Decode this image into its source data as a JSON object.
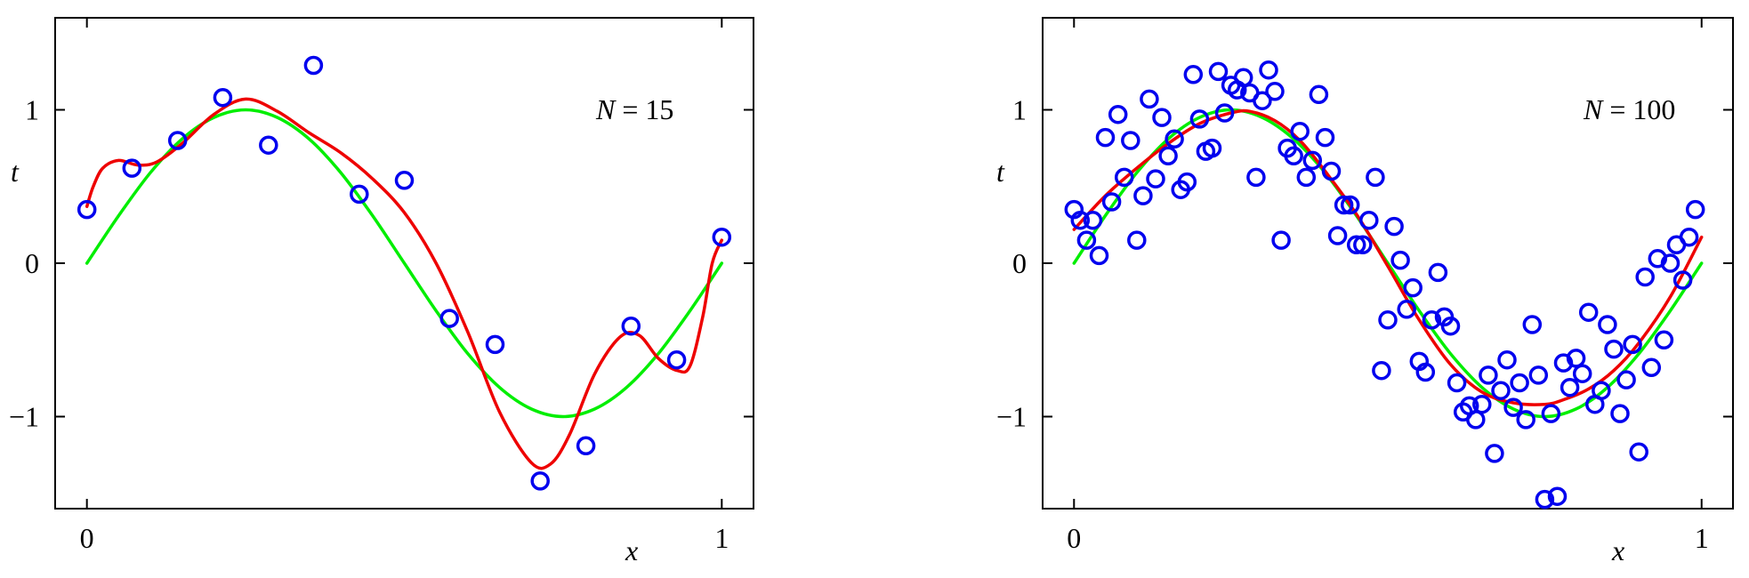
{
  "chart_data": [
    {
      "type": "scatter",
      "annotation": {
        "var": "N",
        "text": " = 15"
      },
      "xlabel": "x",
      "ylabel": "t",
      "xlim": [
        -0.05,
        1.05
      ],
      "ylim": [
        -1.6,
        1.6
      ],
      "xticks": [
        0,
        1
      ],
      "xtick_labels": [
        "0",
        "1"
      ],
      "yticks": [
        -1,
        0,
        1
      ],
      "ytick_labels": [
        "−1",
        "0",
        "1"
      ],
      "grid": false,
      "colors": {
        "points": "#0000ee",
        "true_curve": "#00ee00",
        "fit_curve": "#ee0000"
      },
      "series": [
        {
          "kind": "points",
          "x": [
            0.0,
            0.071,
            0.143,
            0.214,
            0.286,
            0.357,
            0.429,
            0.5,
            0.571,
            0.643,
            0.714,
            0.786,
            0.857,
            0.929,
            1.0
          ],
          "y": [
            0.35,
            0.62,
            0.8,
            1.08,
            0.77,
            1.29,
            0.45,
            0.54,
            -0.36,
            -0.53,
            -1.42,
            -1.19,
            -0.41,
            -0.63,
            0.17
          ]
        },
        {
          "kind": "true-curve",
          "x": [
            0.0,
            0.05,
            0.1,
            0.15,
            0.2,
            0.25,
            0.3,
            0.35,
            0.4,
            0.45,
            0.5,
            0.55,
            0.6,
            0.65,
            0.7,
            0.75,
            0.8,
            0.85,
            0.9,
            0.95,
            1.0
          ],
          "y": [
            0.0,
            0.31,
            0.59,
            0.81,
            0.95,
            1.0,
            0.95,
            0.81,
            0.59,
            0.31,
            0.0,
            -0.31,
            -0.59,
            -0.81,
            -0.95,
            -1.0,
            -0.95,
            -0.81,
            -0.59,
            -0.31,
            0.0
          ]
        },
        {
          "kind": "fit-curve",
          "x": [
            0.0,
            0.01,
            0.025,
            0.05,
            0.08,
            0.11,
            0.15,
            0.2,
            0.25,
            0.3,
            0.35,
            0.4,
            0.45,
            0.5,
            0.55,
            0.6,
            0.65,
            0.7,
            0.73,
            0.76,
            0.8,
            0.84,
            0.87,
            0.9,
            0.93,
            0.95,
            0.97,
            0.985,
            1.0
          ],
          "y": [
            0.37,
            0.5,
            0.62,
            0.67,
            0.64,
            0.66,
            0.78,
            0.97,
            1.07,
            0.99,
            0.85,
            0.72,
            0.55,
            0.33,
            0.0,
            -0.45,
            -0.97,
            -1.3,
            -1.31,
            -1.12,
            -0.72,
            -0.48,
            -0.47,
            -0.62,
            -0.7,
            -0.67,
            -0.35,
            0.0,
            0.15
          ]
        }
      ]
    },
    {
      "type": "scatter",
      "annotation": {
        "var": "N",
        "text": " = 100"
      },
      "xlabel": "x",
      "ylabel": "t",
      "xlim": [
        -0.05,
        1.05
      ],
      "ylim": [
        -1.6,
        1.6
      ],
      "xticks": [
        0,
        1
      ],
      "xtick_labels": [
        "0",
        "1"
      ],
      "yticks": [
        -1,
        0,
        1
      ],
      "ytick_labels": [
        "−1",
        "0",
        "1"
      ],
      "grid": false,
      "colors": {
        "points": "#0000ee",
        "true_curve": "#00ee00",
        "fit_curve": "#ee0000"
      },
      "series": [
        {
          "kind": "points",
          "x": [
            0.0,
            0.01,
            0.02,
            0.03,
            0.04,
            0.05,
            0.06,
            0.07,
            0.08,
            0.09,
            0.1,
            0.11,
            0.12,
            0.13,
            0.14,
            0.15,
            0.16,
            0.17,
            0.18,
            0.19,
            0.2,
            0.21,
            0.22,
            0.23,
            0.24,
            0.25,
            0.26,
            0.27,
            0.28,
            0.29,
            0.3,
            0.31,
            0.32,
            0.33,
            0.34,
            0.35,
            0.36,
            0.37,
            0.38,
            0.39,
            0.4,
            0.41,
            0.42,
            0.43,
            0.44,
            0.45,
            0.46,
            0.47,
            0.48,
            0.49,
            0.5,
            0.51,
            0.52,
            0.53,
            0.54,
            0.55,
            0.56,
            0.57,
            0.58,
            0.59,
            0.6,
            0.61,
            0.62,
            0.63,
            0.64,
            0.65,
            0.66,
            0.67,
            0.68,
            0.69,
            0.7,
            0.71,
            0.72,
            0.73,
            0.74,
            0.75,
            0.76,
            0.77,
            0.78,
            0.79,
            0.8,
            0.81,
            0.82,
            0.83,
            0.84,
            0.85,
            0.86,
            0.87,
            0.88,
            0.89,
            0.9,
            0.91,
            0.92,
            0.93,
            0.94,
            0.95,
            0.96,
            0.97,
            0.98,
            0.99
          ],
          "y": [
            0.35,
            0.28,
            0.15,
            0.28,
            0.05,
            0.82,
            0.4,
            0.97,
            0.56,
            0.8,
            0.15,
            0.44,
            1.07,
            0.55,
            0.95,
            0.7,
            0.81,
            0.48,
            0.53,
            1.23,
            0.94,
            0.73,
            0.75,
            1.25,
            0.98,
            1.16,
            1.13,
            1.21,
            1.11,
            0.56,
            1.06,
            1.26,
            1.12,
            0.15,
            0.75,
            0.7,
            0.86,
            0.56,
            0.67,
            1.1,
            0.82,
            0.6,
            0.18,
            0.38,
            0.38,
            0.12,
            0.12,
            0.28,
            0.56,
            -0.7,
            -0.37,
            0.24,
            0.02,
            -0.3,
            -0.16,
            -0.64,
            -0.71,
            -0.37,
            -0.06,
            -0.35,
            -0.41,
            -0.78,
            -0.97,
            -0.93,
            -1.02,
            -0.92,
            -0.73,
            -1.24,
            -0.83,
            -0.63,
            -0.94,
            -0.78,
            -1.02,
            -0.4,
            -0.73,
            -1.54,
            -0.98,
            -1.52,
            -0.65,
            -0.81,
            -0.62,
            -0.72,
            -0.32,
            -0.92,
            -0.83,
            -0.4,
            -0.56,
            -0.98,
            -0.76,
            -0.53,
            -1.23,
            -0.09,
            -0.68,
            0.03,
            -0.5,
            0.0,
            0.12,
            -0.11,
            0.17,
            0.35
          ]
        },
        {
          "kind": "true-curve",
          "x": [
            0.0,
            0.05,
            0.1,
            0.15,
            0.2,
            0.25,
            0.3,
            0.35,
            0.4,
            0.45,
            0.5,
            0.55,
            0.6,
            0.65,
            0.7,
            0.75,
            0.8,
            0.85,
            0.9,
            0.95,
            1.0
          ],
          "y": [
            0.0,
            0.31,
            0.59,
            0.81,
            0.95,
            1.0,
            0.95,
            0.81,
            0.59,
            0.31,
            0.0,
            -0.31,
            -0.59,
            -0.81,
            -0.95,
            -1.0,
            -0.95,
            -0.81,
            -0.59,
            -0.31,
            0.0
          ]
        },
        {
          "kind": "fit-curve",
          "x": [
            0.0,
            0.05,
            0.1,
            0.15,
            0.2,
            0.25,
            0.28,
            0.32,
            0.36,
            0.4,
            0.45,
            0.5,
            0.55,
            0.6,
            0.65,
            0.7,
            0.75,
            0.78,
            0.82,
            0.86,
            0.9,
            0.95,
            1.0
          ],
          "y": [
            0.22,
            0.44,
            0.62,
            0.78,
            0.91,
            0.98,
            0.99,
            0.93,
            0.8,
            0.6,
            0.32,
            -0.02,
            -0.37,
            -0.66,
            -0.84,
            -0.91,
            -0.92,
            -0.89,
            -0.82,
            -0.7,
            -0.52,
            -0.22,
            0.17
          ]
        }
      ]
    }
  ]
}
